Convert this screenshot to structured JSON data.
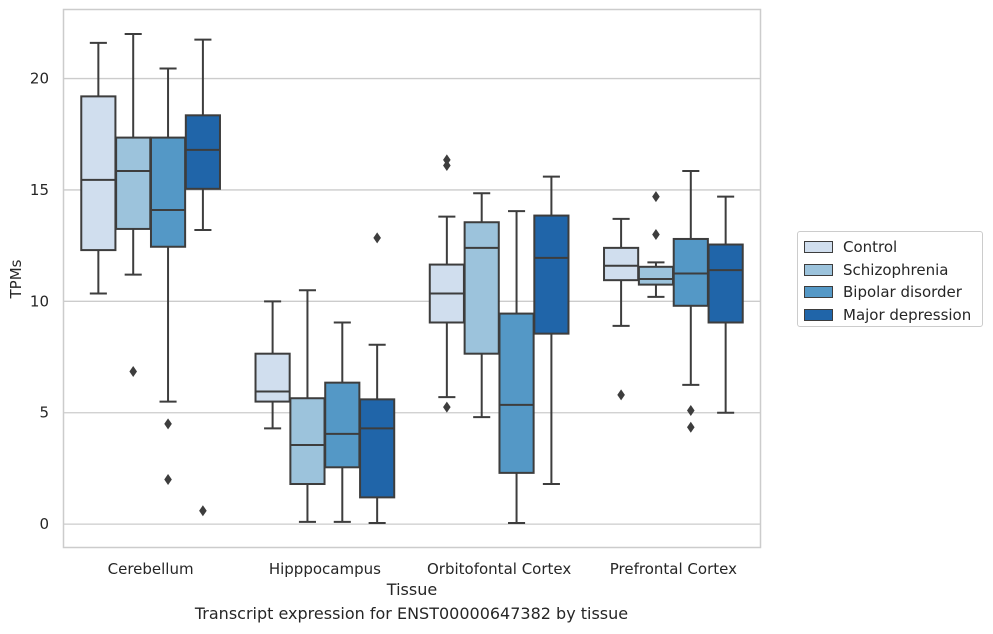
{
  "chart_data": {
    "type": "box",
    "xlabel": "Tissue",
    "ylabel": "TPMs",
    "caption": "Transcript expression for ENST00000647382 by tissue",
    "ylim": [
      -1.05,
      23.1
    ],
    "yticks": [
      0,
      5,
      10,
      15,
      20
    ],
    "grid": true,
    "legend_position": "right",
    "categories": [
      "Cerebellum",
      "Hipppocampus",
      "Orbitofontal Cortex",
      "Prefrontal Cortex"
    ],
    "series": [
      {
        "name": "Control",
        "color": "#d0deee",
        "boxes": [
          {
            "whislo": 10.35,
            "q1": 12.3,
            "med": 15.45,
            "q3": 19.2,
            "whishi": 21.6,
            "fliers": []
          },
          {
            "whislo": 4.3,
            "q1": 5.5,
            "med": 5.95,
            "q3": 7.65,
            "whishi": 10.0,
            "fliers": []
          },
          {
            "whislo": 5.7,
            "q1": 9.05,
            "med": 10.35,
            "q3": 11.65,
            "whishi": 13.8,
            "fliers": [
              5.25,
              16.1,
              16.35
            ]
          },
          {
            "whislo": 8.9,
            "q1": 10.95,
            "med": 11.6,
            "q3": 12.4,
            "whishi": 13.7,
            "fliers": [
              5.8
            ]
          }
        ]
      },
      {
        "name": "Schizophrenia",
        "color": "#9cc3dc",
        "boxes": [
          {
            "whislo": 11.2,
            "q1": 13.25,
            "med": 15.85,
            "q3": 17.35,
            "whishi": 22.0,
            "fliers": [
              6.85
            ]
          },
          {
            "whislo": 0.1,
            "q1": 1.8,
            "med": 3.55,
            "q3": 5.65,
            "whishi": 10.5,
            "fliers": []
          },
          {
            "whislo": 4.8,
            "q1": 7.65,
            "med": 12.4,
            "q3": 13.55,
            "whishi": 14.85,
            "fliers": []
          },
          {
            "whislo": 10.2,
            "q1": 10.75,
            "med": 11.0,
            "q3": 11.55,
            "whishi": 11.75,
            "fliers": [
              13.0,
              14.7
            ]
          }
        ]
      },
      {
        "name": "Bipolar disorder",
        "color": "#5498c6",
        "boxes": [
          {
            "whislo": 5.5,
            "q1": 12.45,
            "med": 14.1,
            "q3": 17.35,
            "whishi": 20.45,
            "fliers": [
              4.5,
              2.0
            ]
          },
          {
            "whislo": 0.1,
            "q1": 2.55,
            "med": 4.05,
            "q3": 6.35,
            "whishi": 9.05,
            "fliers": []
          },
          {
            "whislo": 0.05,
            "q1": 2.3,
            "med": 5.35,
            "q3": 9.45,
            "whishi": 14.05,
            "fliers": []
          },
          {
            "whislo": 6.25,
            "q1": 9.8,
            "med": 11.25,
            "q3": 12.8,
            "whishi": 15.85,
            "fliers": [
              5.1,
              4.35
            ]
          }
        ]
      },
      {
        "name": "Major depression",
        "color": "#2065a9",
        "boxes": [
          {
            "whislo": 13.2,
            "q1": 15.05,
            "med": 16.8,
            "q3": 18.35,
            "whishi": 21.75,
            "fliers": [
              0.6
            ]
          },
          {
            "whislo": 0.05,
            "q1": 1.2,
            "med": 4.3,
            "q3": 5.6,
            "whishi": 8.05,
            "fliers": [
              12.85
            ]
          },
          {
            "whislo": 1.8,
            "q1": 8.55,
            "med": 11.95,
            "q3": 13.85,
            "whishi": 15.6,
            "fliers": []
          },
          {
            "whislo": 5.0,
            "q1": 9.05,
            "med": 11.4,
            "q3": 12.55,
            "whishi": 14.7,
            "fliers": []
          }
        ]
      }
    ]
  }
}
